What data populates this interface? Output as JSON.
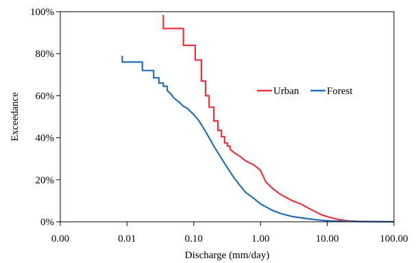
{
  "chart_data": {
    "type": "line",
    "title": "",
    "xlabel": "Discharge (mm/day)",
    "ylabel": "Exceedance",
    "x_scale": "log",
    "xlim": [
      0.001,
      100
    ],
    "ylim": [
      0,
      100
    ],
    "x_ticks": [
      0.001,
      0.01,
      0.1,
      1,
      10,
      100
    ],
    "x_tick_labels": [
      "0.00",
      "0.01",
      "0.10",
      "1.00",
      "10.00",
      "100.00"
    ],
    "y_ticks": [
      0,
      20,
      40,
      60,
      80,
      100
    ],
    "y_tick_labels": [
      "0%",
      "20%",
      "40%",
      "60%",
      "80%",
      "100%"
    ],
    "grid": false,
    "legend_position": "right",
    "series": [
      {
        "name": "Urban",
        "color": "#e8323c",
        "x": [
          0.035,
          0.035,
          0.07,
          0.07,
          0.105,
          0.105,
          0.13,
          0.13,
          0.15,
          0.15,
          0.17,
          0.17,
          0.2,
          0.2,
          0.23,
          0.23,
          0.26,
          0.26,
          0.29,
          0.29,
          0.32,
          0.32,
          0.35,
          0.35,
          0.4,
          0.5,
          0.6,
          0.8,
          1.0,
          1.2,
          1.5,
          2.0,
          3.0,
          4.0,
          6.0,
          8.0,
          10.0,
          15.0,
          20.0,
          30.0,
          50.0,
          100.0
        ],
        "y": [
          98.5,
          92,
          92,
          84,
          84,
          77,
          77,
          67,
          67,
          60,
          60,
          54.5,
          54.5,
          48,
          48,
          43.5,
          43.5,
          40.5,
          40.5,
          37.5,
          37.5,
          36,
          36,
          34.5,
          33,
          31,
          29,
          27,
          24.5,
          19,
          16,
          13,
          10,
          8.5,
          5.5,
          3.5,
          2.5,
          1,
          0.5,
          0.2,
          0.1,
          0
        ]
      },
      {
        "name": "Forest",
        "color": "#1f6fb4",
        "x": [
          0.0085,
          0.0085,
          0.017,
          0.017,
          0.025,
          0.025,
          0.03,
          0.03,
          0.035,
          0.035,
          0.04,
          0.04,
          0.045,
          0.05,
          0.06,
          0.07,
          0.08,
          0.1,
          0.12,
          0.15,
          0.2,
          0.25,
          0.3,
          0.4,
          0.5,
          0.6,
          0.8,
          1.0,
          1.5,
          2.0,
          3.0,
          5.0,
          7.0,
          10.0,
          15.0,
          20.0,
          30.0,
          50.0,
          100.0
        ],
        "y": [
          79,
          76,
          76,
          72,
          72,
          68.5,
          68.5,
          66,
          66,
          64.5,
          64.5,
          62.5,
          61,
          59,
          57,
          55,
          54,
          51,
          48,
          43,
          36,
          31,
          27,
          21,
          17,
          14,
          11,
          8.5,
          5.5,
          4,
          2.5,
          1.5,
          0.9,
          0.5,
          0.3,
          0.2,
          0.1,
          0.05,
          0
        ]
      }
    ]
  }
}
